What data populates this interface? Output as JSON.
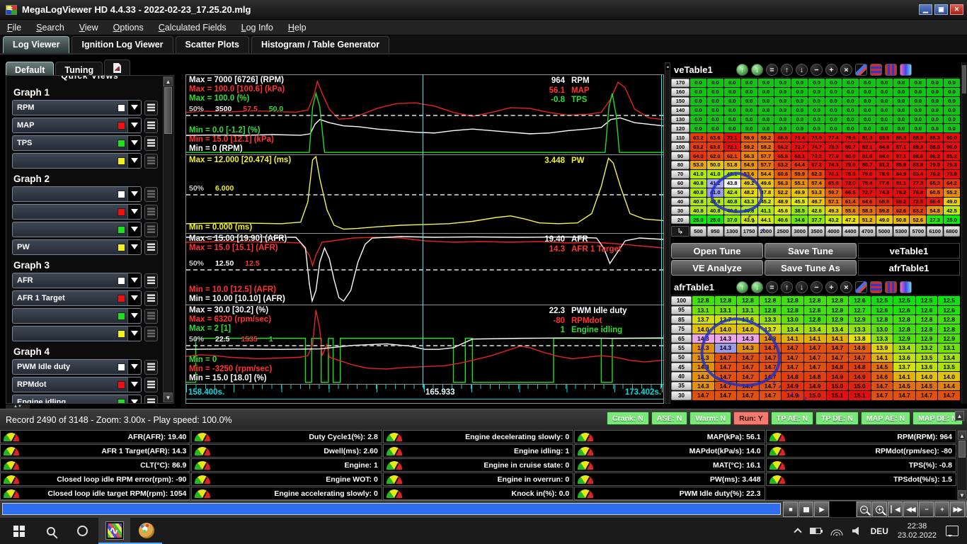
{
  "window": {
    "title": "MegaLogViewer HD 4.4.33 - 2022-02-23_17.25.20.mlg"
  },
  "menu": [
    "File",
    "Search",
    "View",
    "Options",
    "Calculated Fields",
    "Log Info",
    "Help"
  ],
  "tabs": [
    "Log Viewer",
    "Ignition Log Viewer",
    "Scatter Plots",
    "Histogram / Table Generator"
  ],
  "active_tab": "Log Viewer",
  "subtabs": [
    "Default",
    "Tuning"
  ],
  "sidebar": {
    "header": "Quick Views",
    "groups": [
      {
        "label": "Graph 1",
        "channels": [
          {
            "name": "RPM",
            "color": "#ffffff"
          },
          {
            "name": "MAP",
            "color": "#ee1111"
          },
          {
            "name": "TPS",
            "color": "#22dd22"
          },
          {
            "name": "",
            "color": "#f2f222"
          }
        ]
      },
      {
        "label": "Graph 2",
        "channels": [
          {
            "name": "",
            "color": "#ffffff"
          },
          {
            "name": "",
            "color": "#ee1111"
          },
          {
            "name": "",
            "color": "#22dd22"
          },
          {
            "name": "PW",
            "color": "#f2f222"
          }
        ]
      },
      {
        "label": "Graph 3",
        "channels": [
          {
            "name": "AFR",
            "color": "#ffffff"
          },
          {
            "name": "AFR 1 Target",
            "color": "#ee1111"
          },
          {
            "name": "",
            "color": "#22dd22"
          },
          {
            "name": "",
            "color": "#f2f222"
          }
        ]
      },
      {
        "label": "Graph 4",
        "channels": [
          {
            "name": "PWM Idle duty",
            "color": "#ffffff"
          },
          {
            "name": "RPMdot",
            "color": "#ee1111"
          },
          {
            "name": "Engine idling",
            "color": "#22dd22"
          },
          {
            "name": "",
            "color": "#f2f222"
          }
        ]
      }
    ]
  },
  "graphs": [
    {
      "max": [
        [
          "Max = 7000 [6726] (RPM)",
          "#ffffff"
        ],
        [
          "Max = 100.0 [100.6] (kPa)",
          "#ff3333"
        ],
        [
          "Max = 100.0 (%)",
          "#33dd33"
        ]
      ],
      "mid": [
        [
          "50%",
          "#cccccc"
        ],
        [
          "3500",
          "#ffffff"
        ],
        [
          "57.5",
          "#ff3333"
        ],
        [
          "50.0",
          "#33dd33"
        ]
      ],
      "min": [
        [
          "Min = 0.0 [-1.2] (%)",
          "#33dd33"
        ],
        [
          "Min = 15.0 [12.1] (kPa)",
          "#ff3333"
        ],
        [
          "Min = 0 (RPM)",
          "#ffffff"
        ]
      ],
      "values": [
        [
          "964",
          "RPM",
          "#ffffff"
        ],
        [
          "56.1",
          "MAP",
          "#ff3333"
        ],
        [
          "-0.8",
          "TPS",
          "#33dd33"
        ]
      ]
    },
    {
      "max": [
        [
          "Max = 12.000 [20.474] (ms)",
          "#f2f222"
        ]
      ],
      "mid": [
        [
          "50%",
          "#cccccc"
        ],
        [
          "6.000",
          "#f2f222"
        ]
      ],
      "min": [
        [
          "Min = 0.000 (ms)",
          "#f2f222"
        ]
      ],
      "values": [
        [
          "3.448",
          "PW",
          "#f2f222"
        ]
      ]
    },
    {
      "max": [
        [
          "Max = 15.00 [19.90] (AFR)",
          "#ffffff"
        ],
        [
          "Max = 15.0 [15.1] (AFR)",
          "#ff3333"
        ]
      ],
      "mid": [
        [
          "50%",
          "#cccccc"
        ],
        [
          "12.50",
          "#ffffff"
        ],
        [
          "12.5",
          "#ff3333"
        ]
      ],
      "min": [
        [
          "Min = 10.0 [12.5] (AFR)",
          "#ff3333"
        ],
        [
          "Min = 10.00 [10.10] (AFR)",
          "#ffffff"
        ]
      ],
      "values": [
        [
          "19.40",
          "AFR",
          "#ffffff"
        ],
        [
          "14.3",
          "AFR 1 Target",
          "#ff3333"
        ]
      ]
    },
    {
      "max": [
        [
          "Max = 30.0 [30.2] (%)",
          "#ffffff"
        ],
        [
          "Max = 6320 (rpm/sec)",
          "#ff3333"
        ],
        [
          "Max = 2 [1]",
          "#33dd33"
        ]
      ],
      "mid": [
        [
          "50%",
          "#cccccc"
        ],
        [
          "22.5",
          "#ffffff"
        ],
        [
          "1535",
          "#ff3333"
        ],
        [
          "1",
          "#33dd33"
        ]
      ],
      "min": [
        [
          "Min = 0",
          "#33dd33"
        ],
        [
          "Min = -3250 (rpm/sec)",
          "#ff3333"
        ],
        [
          "Min = 15.0 [18.0] (%)",
          "#ffffff"
        ]
      ],
      "values": [
        [
          "22.3",
          "PWM Idle duty",
          "#ffffff"
        ],
        [
          "-80",
          "RPMdot",
          "#ff3333"
        ],
        [
          "1",
          "Engine idling",
          "#33dd33"
        ]
      ]
    }
  ],
  "time_axis": {
    "start": "158.400s.",
    "cursor": "165.933",
    "end": "173.402s."
  },
  "table_toolbar": [
    {
      "t": "shift-up",
      "g": "↑",
      "s": "green"
    },
    {
      "t": "shift-down",
      "g": "↓",
      "s": "green"
    },
    {
      "t": "set-equal",
      "g": "="
    },
    {
      "t": "increase-row",
      "g": "↑"
    },
    {
      "t": "decrease-row",
      "g": "↓"
    },
    {
      "t": "minus",
      "g": "−"
    },
    {
      "t": "plus",
      "g": "+"
    },
    {
      "t": "clear",
      "g": "×"
    },
    {
      "t": "pencil",
      "s": "pencil"
    },
    {
      "t": "color-rows",
      "s": "rows"
    },
    {
      "t": "color-columns",
      "s": "cols"
    },
    {
      "t": "color-gradient",
      "s": "grad"
    }
  ],
  "ve_table": {
    "title": "veTable1",
    "y": [
      170,
      160,
      150,
      140,
      130,
      120,
      110,
      100,
      90,
      80,
      70,
      60,
      50,
      40,
      30,
      20
    ],
    "x": [
      500,
      950,
      1300,
      1750,
      2000,
      2500,
      3000,
      3500,
      4000,
      4400,
      4700,
      5000,
      5300,
      5700,
      6100,
      6800
    ],
    "rows": [
      [
        0.0,
        0.0,
        0.0,
        0.0,
        0.0,
        0.0,
        0.0,
        0.0,
        0.0,
        0.0,
        0.0,
        0.0,
        0.0,
        0.0,
        0.0,
        0.0
      ],
      [
        0.0,
        0.0,
        0.0,
        0.0,
        0.0,
        0.0,
        0.0,
        0.0,
        0.0,
        0.0,
        0.0,
        0.0,
        0.0,
        0.0,
        0.0,
        0.0
      ],
      [
        0.0,
        0.0,
        0.0,
        0.0,
        0.0,
        0.0,
        0.0,
        0.0,
        0.0,
        0.0,
        0.0,
        0.0,
        0.0,
        0.0,
        0.0,
        0.0
      ],
      [
        0.0,
        0.0,
        0.0,
        0.0,
        0.0,
        0.0,
        0.0,
        0.0,
        0.0,
        0.0,
        0.0,
        0.0,
        0.0,
        0.0,
        0.0,
        0.0
      ],
      [
        0.0,
        0.0,
        0.0,
        0.0,
        0.0,
        0.0,
        0.0,
        0.0,
        0.0,
        0.0,
        0.0,
        0.0,
        0.0,
        0.0,
        0.0,
        0.0
      ],
      [
        0.0,
        0.0,
        0.0,
        0.0,
        0.0,
        0.0,
        0.0,
        0.0,
        0.0,
        0.0,
        0.0,
        0.0,
        0.0,
        0.0,
        0.0,
        0.0
      ],
      [
        63.2,
        63.6,
        72.1,
        59.9,
        59.2,
        66.6,
        71.4,
        73.9,
        77.4,
        79.6,
        81.3,
        83.5,
        86.3,
        88.9,
        88.3,
        90.0
      ],
      [
        63.2,
        63.6,
        72.1,
        59.2,
        58.2,
        66.2,
        72.7,
        74.7,
        78.3,
        80.7,
        82.1,
        84.6,
        87.1,
        89.3,
        88.0,
        90.0
      ],
      [
        64.0,
        62.0,
        62.1,
        56.3,
        57.7,
        65.6,
        68.1,
        73.2,
        77.9,
        80.0,
        81.6,
        84.0,
        87.1,
        88.6,
        86.2,
        85.2
      ],
      [
        53.0,
        50.0,
        51.8,
        54.9,
        57.7,
        63.2,
        64.4,
        67.2,
        74.3,
        79.0,
        80.7,
        81.2,
        85.9,
        83.8,
        79.0,
        79.3
      ],
      [
        41.0,
        41.0,
        42.1,
        53.6,
        54.4,
        60.6,
        59.9,
        62.3,
        70.1,
        75.3,
        79.0,
        78.9,
        84.9,
        83.4,
        76.2,
        73.8
      ],
      [
        40.8,
        41.2,
        43.8,
        49.2,
        49.6,
        56.3,
        55.1,
        57.4,
        65.8,
        72.0,
        75.4,
        77.6,
        81.1,
        77.3,
        65.3,
        64.2
      ],
      [
        40.8,
        41.0,
        42.4,
        48.2,
        47.8,
        52.2,
        49.9,
        53.3,
        59.7,
        66.5,
        72.7,
        74.3,
        78.2,
        76.8,
        60.5,
        55.2
      ],
      [
        40.8,
        40.8,
        40.8,
        43.3,
        45.2,
        48.9,
        45.5,
        49.7,
        57.1,
        61.4,
        64.6,
        65.6,
        69.2,
        72.5,
        66.4,
        49.0
      ],
      [
        40.8,
        40.8,
        40.8,
        40.8,
        41.1,
        45.6,
        38.5,
        42.6,
        49.3,
        55.6,
        58.3,
        59.8,
        62.6,
        63.2,
        54.8,
        42.5
      ],
      [
        25.0,
        25.0,
        37.0,
        43.9,
        44.1,
        40.6,
        34.6,
        37.7,
        43.2,
        47.2,
        51.2,
        49.0,
        50.8,
        52.6,
        27.3,
        25.0
      ]
    ],
    "highlights": [
      {
        "r": 11,
        "c": 1,
        "color": "#a8aef2"
      },
      {
        "r": 11,
        "c": 2,
        "color": "#f2f2f2"
      },
      {
        "r": 12,
        "c": 1,
        "color": "#969ce8"
      }
    ]
  },
  "tune_buttons": [
    "Open Tune",
    "Save Tune",
    "VE Analyze",
    "Save Tune As"
  ],
  "table_list": [
    "veTable1",
    "afrTable1"
  ],
  "afr_table": {
    "title": "afrTable1",
    "y": [
      100,
      95,
      85,
      75,
      65,
      55,
      50,
      45,
      40,
      35,
      30
    ],
    "rows": [
      [
        12.8,
        12.8,
        12.8,
        12.8,
        12.8,
        12.8,
        12.8,
        12.6,
        12.5,
        12.5,
        12.5,
        12.5
      ],
      [
        13.1,
        13.1,
        13.1,
        12.8,
        12.8,
        12.8,
        12.8,
        12.7,
        12.6,
        12.6,
        12.6,
        12.6
      ],
      [
        13.7,
        13.7,
        13.6,
        13.3,
        13.0,
        12.8,
        12.9,
        12.9,
        12.8,
        12.8,
        12.8,
        12.8
      ],
      [
        14.0,
        14.0,
        14.0,
        13.7,
        13.4,
        13.4,
        13.4,
        13.3,
        13.0,
        12.8,
        12.8,
        12.8
      ],
      [
        14.3,
        14.3,
        14.3,
        14.3,
        14.1,
        14.1,
        14.1,
        13.8,
        13.3,
        12.9,
        12.9,
        12.9
      ],
      [
        14.3,
        14.3,
        14.3,
        14.7,
        14.7,
        14.7,
        14.7,
        14.6,
        13.9,
        13.4,
        13.2,
        13.1
      ],
      [
        14.3,
        14.7,
        14.7,
        14.7,
        14.7,
        14.7,
        14.7,
        14.7,
        14.1,
        13.6,
        13.5,
        13.4
      ],
      [
        14.3,
        14.7,
        14.7,
        14.7,
        14.7,
        14.7,
        14.8,
        14.8,
        14.5,
        13.7,
        13.6,
        13.5
      ],
      [
        14.3,
        14.7,
        14.7,
        14.7,
        14.8,
        14.8,
        14.9,
        14.9,
        14.6,
        14.1,
        14.0,
        14.0
      ],
      [
        14.3,
        14.7,
        14.7,
        14.7,
        14.9,
        14.9,
        15.0,
        15.0,
        14.7,
        14.5,
        14.5,
        14.4
      ],
      [
        14.7,
        14.7,
        14.7,
        14.7,
        14.9,
        15.0,
        15.1,
        15.1,
        14.7,
        14.7,
        14.7,
        14.7
      ]
    ],
    "highlights": [
      {
        "r": 4,
        "c": 0,
        "color": "#eba6eb"
      },
      {
        "r": 4,
        "c": 1,
        "color": "#eba6eb"
      },
      {
        "r": 4,
        "c": 2,
        "color": "#eba6eb"
      },
      {
        "r": 5,
        "c": 1,
        "color": "#9a9ae8"
      }
    ]
  },
  "status": {
    "record": "Record 2490 of 3148 - Zoom: 3.00x - Play speed: 100.0%",
    "badges": [
      {
        "label": "Crank: N",
        "state": "n"
      },
      {
        "label": "ASE: N",
        "state": "n"
      },
      {
        "label": "Warm: N",
        "state": "n"
      },
      {
        "label": "Run: Y",
        "state": "y"
      },
      {
        "label": "TP AE: N",
        "state": "n"
      },
      {
        "label": "TP DE: N",
        "state": "n"
      },
      {
        "label": "MAP AE: N",
        "state": "n"
      },
      {
        "label": "MAP DE: N",
        "state": "n"
      }
    ]
  },
  "gauges": {
    "columns": [
      [
        "AFR(AFR): 19.40",
        "AFR 1 Target(AFR): 14.3",
        "CLT(°C): 86.9",
        "Closed loop idle RPM error(rpm): -90",
        "Closed loop idle target RPM(rpm): 1054"
      ],
      [
        "Duty Cycle1(%): 2.8",
        "Dwell(ms): 2.60",
        "Engine: 1",
        "Engine WOT: 0",
        "Engine accelerating slowly: 0"
      ],
      [
        "Engine decelerating slowly: 0",
        "Engine idling: 1",
        "Engine in cruise state: 0",
        "Engine in overrun: 0",
        "Knock in(%): 0.0"
      ],
      [
        "MAP(kPa): 56.1",
        "MAPdot(kPa/s): 14.0",
        "MAT(°C): 16.1",
        "PW(ms): 3.448",
        "PWM Idle duty(%): 22.3"
      ],
      [
        "RPM(RPM): 964",
        "RPMdot(rpm/sec): -80",
        "TPS(%): -0.8",
        "TPSdot(%/s): 1.5",
        ""
      ]
    ]
  },
  "playback": {
    "buttons": [
      "stop",
      "pause",
      "play",
      "gap",
      "zoom-out",
      "zoom-in",
      "skip-start",
      "rewind",
      "minus",
      "plus",
      "fast-forward",
      "skip-end"
    ]
  },
  "taskbar": {
    "lang": "DEU",
    "time": "22:38",
    "date": "23.02.2022"
  }
}
